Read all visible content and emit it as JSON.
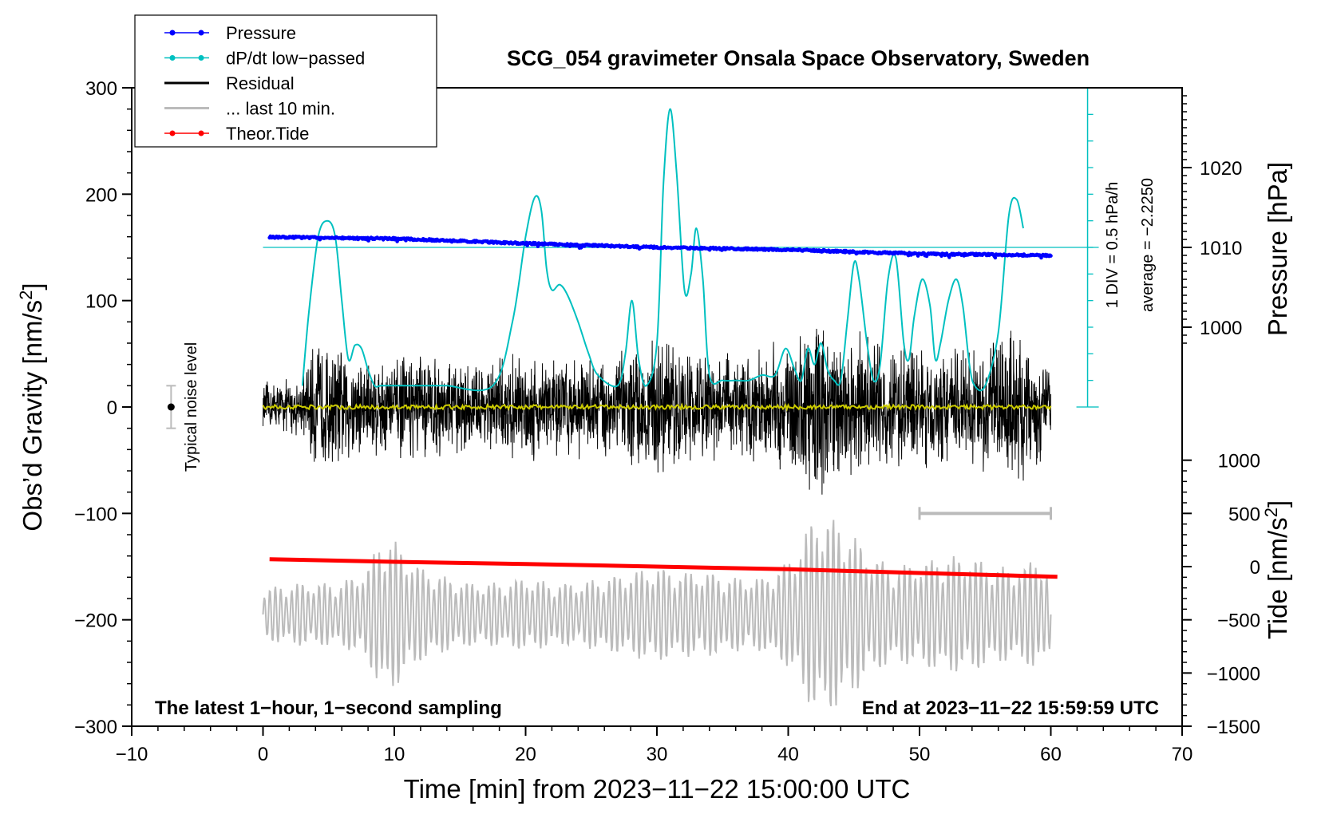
{
  "chart_data": {
    "type": "line",
    "title": "SCG_054 gravimeter Onsala Space Observatory, Sweden",
    "xlabel": "Time [min] from 2023−11−22 15:00:00 UTC",
    "ylabel_left_main": "Obs’d Gravity [nm/s",
    "ylabel_left_sup": "2",
    "ylabel_left_end": "]",
    "ylabel_right_top": "Pressure [hPa]",
    "ylabel_right_bottom_main": "Tide [nm/s",
    "ylabel_right_bottom_sup": "2",
    "ylabel_right_bottom_end": "]",
    "xlim": [
      -10,
      70
    ],
    "ylim": [
      -300,
      300
    ],
    "x_ticks": [
      -10,
      0,
      10,
      20,
      30,
      40,
      50,
      60,
      70
    ],
    "x_tick_labels": [
      "−10",
      "0",
      "10",
      "20",
      "30",
      "40",
      "50",
      "60",
      "70"
    ],
    "y_ticks": [
      300,
      200,
      100,
      0,
      -100,
      -200,
      -300
    ],
    "y_tick_labels": [
      "300",
      "200",
      "100",
      "0",
      "−100",
      "−200",
      "−300"
    ],
    "pressure_axis": {
      "ticks": [
        1020,
        1010,
        1000
      ],
      "tick_labels": [
        "1020",
        "1010",
        "1000"
      ],
      "gravity_at_1010": 150,
      "gravity_per_hpa": 7.5
    },
    "tide_axis": {
      "ticks": [
        1000,
        500,
        0,
        -500,
        -1000,
        -1500
      ],
      "tick_labels": [
        "1000",
        "500",
        "0",
        "−500",
        "−1000",
        "−1500"
      ],
      "gravity_at_zero": -150,
      "gravity_per_unit": 0.1
    },
    "dpdt_scale": {
      "label_div": "1 DIV = 0.5 hPa/h",
      "label_avg": "average = −2.2250",
      "top_gravity": 300,
      "zero_gravity": 0,
      "baseline_gravity": 150,
      "x_minutes": 62.8
    },
    "noise_level": {
      "label": "Typical noise level",
      "x_minutes": -7,
      "center": 0,
      "half_range": 20
    },
    "last10_bar": {
      "x_start": 50,
      "x_end": 60,
      "y": -100
    },
    "notes": {
      "left": "The latest 1−hour, 1−second sampling",
      "right": "End at 2023−11−22 15:59:59 UTC"
    },
    "series": [
      {
        "name": "Pressure",
        "color": "#0000ff",
        "axis": "pressure_hPa",
        "x": [
          0.5,
          10,
          20,
          30,
          40,
          50,
          60
        ],
        "values": [
          1011.3,
          1011.1,
          1010.5,
          1010.0,
          1009.7,
          1009.2,
          1009.0
        ]
      },
      {
        "name": "dP/dt low−passed",
        "color": "#00c0c0",
        "axis": "gravity",
        "x": [
          3.0,
          3.5,
          4.2,
          4.9,
          5.5,
          6.0,
          6.5,
          7.0,
          7.5,
          8.0,
          8.5,
          9.0,
          10.0,
          12.0,
          13.0,
          14.0,
          17.5,
          19.0,
          20.0,
          20.7,
          21.2,
          21.6,
          22.0,
          22.6,
          23.2,
          24.0,
          24.8,
          25.5,
          27.0,
          27.6,
          28.1,
          28.6,
          29.2,
          30.0,
          30.5,
          31.0,
          31.5,
          32.1,
          32.6,
          33.0,
          33.5,
          34.0,
          35.0,
          36.0,
          37.0,
          38.0,
          39.0,
          39.8,
          40.5,
          41.0,
          41.5,
          42.0,
          42.5,
          43.0,
          43.5,
          44.0,
          44.5,
          45.0,
          45.4,
          46.0,
          46.5,
          47.0,
          47.6,
          48.2,
          48.8,
          49.2,
          49.6,
          50.2,
          50.8,
          51.2,
          51.6,
          52.2,
          52.8,
          53.3,
          53.8,
          54.2,
          55.0,
          56.0,
          56.8,
          57.4,
          57.9
        ],
        "values": [
          20,
          90,
          160,
          175,
          160,
          100,
          45,
          58,
          55,
          35,
          20,
          20,
          20,
          20,
          20,
          20,
          20,
          80,
          160,
          197,
          185,
          130,
          110,
          115,
          105,
          80,
          50,
          30,
          20,
          50,
          100,
          45,
          20,
          60,
          210,
          280,
          220,
          110,
          125,
          168,
          120,
          30,
          25,
          25,
          25,
          30,
          30,
          55,
          35,
          25,
          55,
          40,
          60,
          35,
          25,
          25,
          80,
          135,
          120,
          60,
          25,
          40,
          120,
          140,
          60,
          45,
          85,
          120,
          95,
          45,
          60,
          100,
          120,
          95,
          40,
          20,
          20,
          70,
          180,
          195,
          168
        ]
      },
      {
        "name": "Residual",
        "color": "#000000",
        "axis": "gravity",
        "x_range": [
          0,
          60
        ],
        "envelope_x": [
          0,
          3,
          4,
          6,
          8,
          10,
          12,
          14,
          16,
          18,
          20,
          22,
          24,
          26,
          28,
          30,
          32,
          34,
          36,
          38,
          40,
          42,
          44,
          46,
          48,
          50,
          52,
          54,
          56,
          57,
          58,
          60
        ],
        "envelope_amplitude": [
          25,
          30,
          70,
          60,
          55,
          50,
          55,
          50,
          45,
          50,
          55,
          55,
          50,
          55,
          60,
          70,
          60,
          55,
          55,
          60,
          70,
          95,
          70,
          75,
          60,
          65,
          60,
          55,
          70,
          100,
          70,
          45
        ]
      },
      {
        "name": "... last 10 min.",
        "color": "#bbbbbb",
        "axis": "gravity",
        "x_range": [
          0,
          60
        ],
        "center": -195,
        "envelope_x": [
          0,
          3,
          6,
          8,
          9,
          10,
          12,
          14,
          16,
          18,
          20,
          22,
          24,
          26,
          28,
          30,
          32,
          34,
          36,
          38,
          40,
          41,
          42,
          43,
          44,
          45,
          46,
          48,
          50,
          52,
          54,
          56,
          58,
          59,
          60
        ],
        "envelope_amplitude": [
          25,
          30,
          30,
          45,
          75,
          70,
          45,
          35,
          30,
          30,
          35,
          30,
          30,
          35,
          40,
          45,
          40,
          40,
          35,
          35,
          50,
          70,
          95,
          95,
          85,
          75,
          60,
          45,
          50,
          55,
          55,
          45,
          45,
          60,
          30
        ]
      },
      {
        "name": "Theor.Tide",
        "color": "#ff0000",
        "axis": "tide",
        "x": [
          0.5,
          10,
          20,
          30,
          40,
          50,
          60.5
        ],
        "values": [
          70,
          45,
          25,
          0,
          -25,
          -60,
          -95
        ]
      },
      {
        "name": "Residual low−passed",
        "color": "#cccc00",
        "axis": "gravity",
        "x_range": [
          0,
          60
        ],
        "center": 0,
        "amplitude": 2
      }
    ],
    "legend": {
      "position": "top-left",
      "entries": [
        {
          "label": "Pressure",
          "color": "#0000ff",
          "marker": "dot"
        },
        {
          "label": "dP/dt low−passed",
          "color": "#00c0c0",
          "marker": "dot"
        },
        {
          "label": "Residual",
          "color": "#000000",
          "marker": "none"
        },
        {
          "label": "... last 10 min.",
          "color": "#bbbbbb",
          "marker": "none"
        },
        {
          "label": "Theor.Tide",
          "color": "#ff0000",
          "marker": "dot"
        }
      ]
    }
  }
}
